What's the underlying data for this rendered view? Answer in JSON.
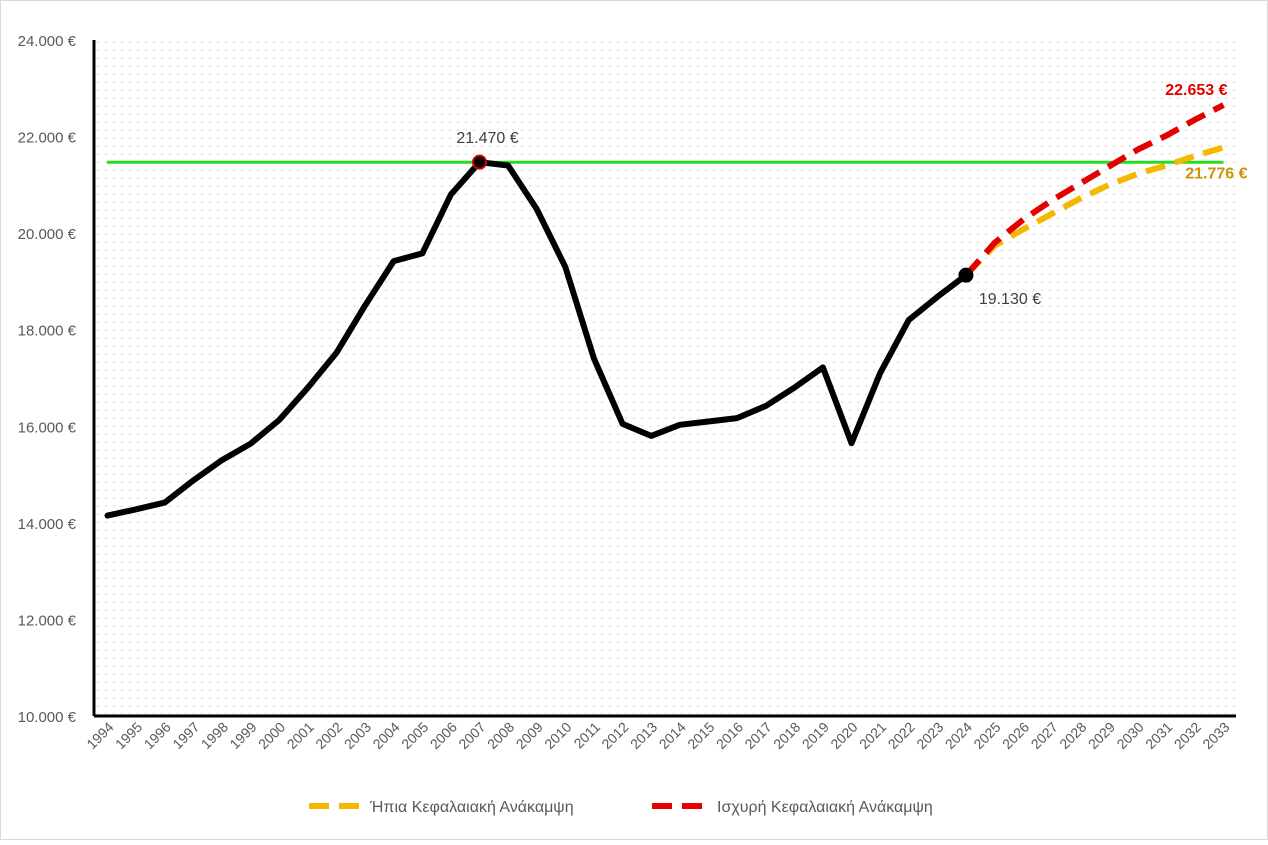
{
  "chart_data": {
    "type": "line",
    "x": [
      1994,
      1995,
      1996,
      1997,
      1998,
      1999,
      2000,
      2001,
      2002,
      2003,
      2004,
      2005,
      2006,
      2007,
      2008,
      2009,
      2010,
      2011,
      2012,
      2013,
      2014,
      2015,
      2016,
      2017,
      2018,
      2019,
      2020,
      2021,
      2022,
      2023,
      2024,
      2025,
      2026,
      2027,
      2028,
      2029,
      2030,
      2031,
      2032,
      2033
    ],
    "x_tick_labels": [
      "1994",
      "1995",
      "1996",
      "1997",
      "1998",
      "1999",
      "2000",
      "2001",
      "2002",
      "2003",
      "2004",
      "2005",
      "2006",
      "2007",
      "2008",
      "2009",
      "2010",
      "2011",
      "2012",
      "2013",
      "2014",
      "2015",
      "2016",
      "2017",
      "2018",
      "2019",
      "2020",
      "2021",
      "2022",
      "2023",
      "2024",
      "2025",
      "2026",
      "2027",
      "2028",
      "2029",
      "2030",
      "2031",
      "2032",
      "2033"
    ],
    "ylim": [
      10000,
      24000
    ],
    "y_ticks": [
      10000,
      12000,
      14000,
      16000,
      18000,
      20000,
      22000,
      24000
    ],
    "y_tick_labels": [
      "10.000 €",
      "12.000 €",
      "14.000 €",
      "16.000 €",
      "18.000 €",
      "20.000 €",
      "22.000 €",
      "24.000 €"
    ],
    "grid": "dotted background",
    "legend_position": "bottom",
    "series": [
      {
        "key": "historical",
        "style": "solid",
        "color": "#000000",
        "x": [
          1994,
          1995,
          1996,
          1997,
          1998,
          1999,
          2000,
          2001,
          2002,
          2003,
          2004,
          2005,
          2006,
          2007,
          2008,
          2009,
          2010,
          2011,
          2012,
          2013,
          2014,
          2015,
          2016,
          2017,
          2018,
          2019,
          2020,
          2021,
          2022,
          2023,
          2024
        ],
        "values": [
          14150,
          14280,
          14420,
          14880,
          15300,
          15640,
          16130,
          16800,
          17520,
          18500,
          19420,
          19580,
          20800,
          21470,
          21400,
          20500,
          19300,
          17400,
          16050,
          15800,
          16030,
          16100,
          16170,
          16420,
          16800,
          17220,
          15650,
          17100,
          18200,
          18680,
          19130
        ]
      },
      {
        "key": "mild",
        "name": "Ήπια Κεφαλαιακή Ανάκαμψη",
        "style": "dashed",
        "color": "#f5b800",
        "x": [
          2024,
          2025,
          2026,
          2027,
          2028,
          2029,
          2030,
          2031,
          2032,
          2033
        ],
        "values": [
          19130,
          19740,
          20080,
          20400,
          20720,
          21000,
          21230,
          21400,
          21600,
          21776
        ]
      },
      {
        "key": "strong",
        "name": "Ισχυρή Κεφαλαιακή Ανάκαμψη",
        "style": "dashed",
        "color": "#e30000",
        "x": [
          2024,
          2025,
          2026,
          2027,
          2028,
          2029,
          2030,
          2031,
          2032,
          2033
        ],
        "values": [
          19130,
          19800,
          20280,
          20680,
          21030,
          21380,
          21730,
          22020,
          22350,
          22653
        ]
      },
      {
        "key": "peak_reference",
        "style": "solid",
        "color": "#22dd22",
        "x": [
          1994,
          2033
        ],
        "values": [
          21470,
          21470
        ]
      }
    ],
    "markers": [
      {
        "key": "peak",
        "x": 2007,
        "y": 21470,
        "fill": "#000000",
        "stroke": "#d00000"
      },
      {
        "key": "current",
        "x": 2024,
        "y": 19130,
        "fill": "#000000",
        "stroke": "#000000"
      }
    ],
    "annotations": [
      {
        "key": "peak_label",
        "text": "21.470 €",
        "x": 2007,
        "y": 21470,
        "color": "#404040",
        "bold": false
      },
      {
        "key": "current_label",
        "text": "19.130 €",
        "x": 2024,
        "y": 19130,
        "color": "#404040",
        "bold": false
      },
      {
        "key": "strong_end_label",
        "text": "22.653 €",
        "x": 2033,
        "y": 22653,
        "color": "#e30000",
        "bold": true
      },
      {
        "key": "mild_end_label",
        "text": "21.776 €",
        "x": 2033,
        "y": 21776,
        "color": "#c89400",
        "bold": true
      }
    ]
  }
}
